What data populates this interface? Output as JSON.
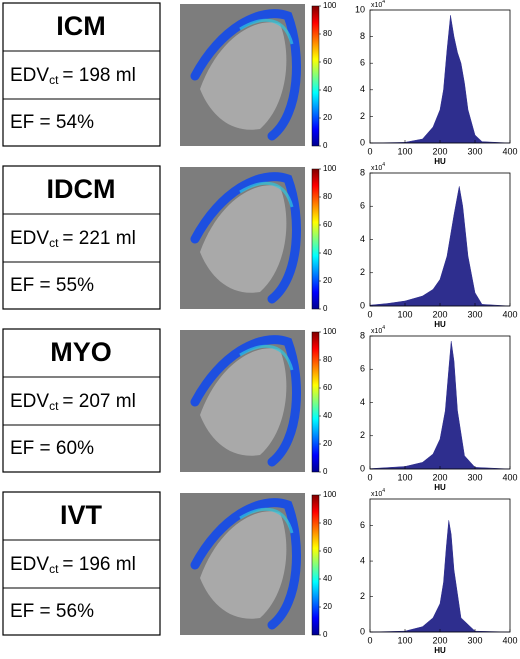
{
  "panels": [
    {
      "name": "ICM",
      "edv": {
        "label": "EDV",
        "sub": "ct",
        "value": "= 198 ml"
      },
      "ef": "EF = 54%",
      "colorbar": {
        "lim": [
          0,
          100
        ],
        "ticks": [
          0,
          20,
          40,
          60,
          80,
          100
        ]
      }
    },
    {
      "name": "IDCM",
      "edv": {
        "label": "EDV",
        "sub": "ct",
        "value": "=  221 ml"
      },
      "ef": "EF = 55%",
      "colorbar": {
        "lim": [
          0,
          100
        ],
        "ticks": [
          0,
          20,
          40,
          60,
          80,
          100
        ]
      }
    },
    {
      "name": "MYO",
      "edv": {
        "label": "EDV",
        "sub": "ct",
        "value": "=  207 ml"
      },
      "ef": "EF = 60%",
      "colorbar": {
        "lim": [
          0,
          100
        ],
        "ticks": [
          0,
          20,
          40,
          60,
          80,
          100
        ]
      }
    },
    {
      "name": "IVT",
      "edv": {
        "label": "EDV",
        "sub": "ct",
        "value": "=  196 ml"
      },
      "ef": "EF = 56%",
      "colorbar": {
        "lim": [
          0,
          100
        ],
        "ticks": [
          0,
          20,
          40,
          60,
          80,
          100
        ]
      }
    }
  ],
  "chart_data": [
    {
      "type": "area",
      "x": [
        0,
        100,
        150,
        180,
        200,
        210,
        220,
        230,
        240,
        250,
        260,
        270,
        280,
        300,
        320,
        400
      ],
      "values": [
        0,
        0.05,
        0.3,
        1.2,
        2.5,
        4.0,
        7.0,
        9.6,
        8.0,
        6.8,
        6.0,
        4.5,
        2.5,
        0.6,
        0.1,
        0
      ],
      "color": "#2e2e8e",
      "xlabel": "HU",
      "scale": {
        "base": "x10",
        "exp": "4"
      },
      "xlim": [
        0,
        400
      ],
      "xticks": [
        0,
        100,
        200,
        300,
        400
      ],
      "ylim": [
        0,
        10
      ],
      "yticks": [
        0,
        2,
        4,
        6,
        8,
        10
      ]
    },
    {
      "type": "area",
      "x": [
        0,
        50,
        100,
        150,
        180,
        200,
        220,
        240,
        255,
        265,
        280,
        300,
        320,
        400
      ],
      "values": [
        0.05,
        0.15,
        0.3,
        0.6,
        1.0,
        1.6,
        3.0,
        5.5,
        7.2,
        6.0,
        3.0,
        0.8,
        0.1,
        0
      ],
      "color": "#2e2e8e",
      "xlabel": "HU",
      "scale": {
        "base": "x10",
        "exp": "4"
      },
      "xlim": [
        0,
        400
      ],
      "xticks": [
        0,
        100,
        200,
        300,
        400
      ],
      "ylim": [
        0,
        8
      ],
      "yticks": [
        0,
        2,
        4,
        6,
        8
      ]
    },
    {
      "type": "area",
      "x": [
        0,
        100,
        150,
        180,
        200,
        215,
        225,
        232,
        240,
        250,
        270,
        300,
        400
      ],
      "values": [
        0.02,
        0.15,
        0.4,
        0.9,
        1.8,
        3.5,
        6.0,
        7.7,
        6.5,
        3.5,
        0.8,
        0.1,
        0
      ],
      "color": "#2e2e8e",
      "xlabel": "HU",
      "scale": {
        "base": "x10",
        "exp": "4"
      },
      "xlim": [
        0,
        400
      ],
      "xticks": [
        0,
        100,
        200,
        300,
        400
      ],
      "ylim": [
        0,
        8
      ],
      "yticks": [
        0,
        2,
        4,
        6,
        8
      ]
    },
    {
      "type": "area",
      "x": [
        0,
        100,
        150,
        180,
        200,
        210,
        218,
        225,
        232,
        240,
        260,
        300,
        400
      ],
      "values": [
        0,
        0.05,
        0.3,
        0.8,
        1.6,
        2.8,
        4.8,
        6.3,
        5.5,
        3.5,
        0.8,
        0.05,
        0
      ],
      "color": "#2e2e8e",
      "xlabel": "HU",
      "scale": {
        "base": "x10",
        "exp": "4"
      },
      "xlim": [
        0,
        400
      ],
      "xticks": [
        0,
        100,
        200,
        300,
        400
      ],
      "ylim": [
        0,
        7.5
      ],
      "yticks": [
        0,
        2,
        4,
        6
      ]
    }
  ]
}
